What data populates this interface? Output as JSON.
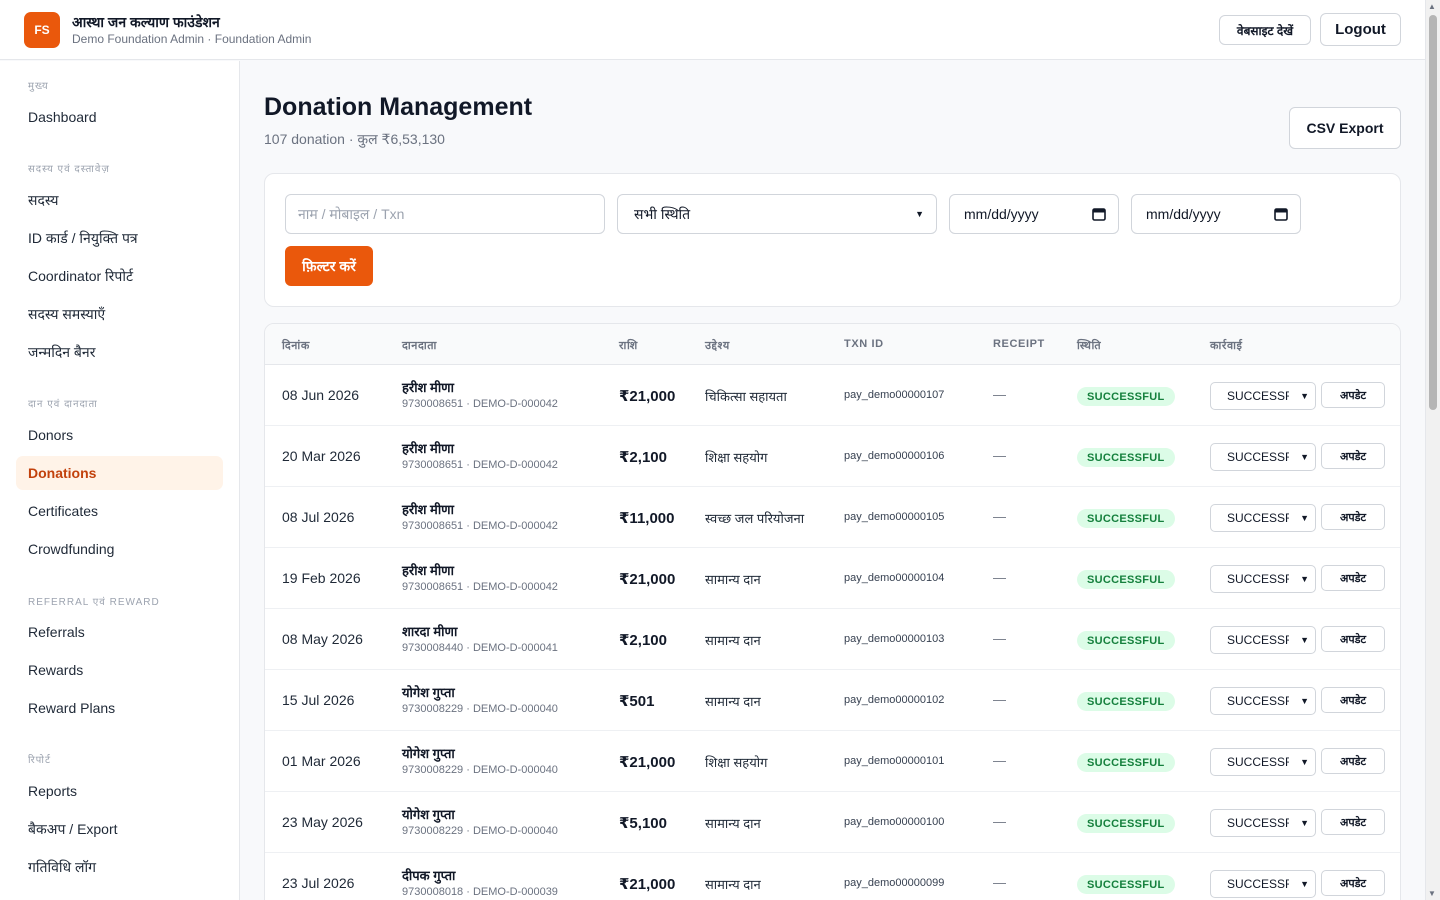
{
  "header": {
    "logo_text": "FS",
    "org_name": "आस्था जन कल्याण फाउंडेशन",
    "org_sub": "Demo Foundation Admin · Foundation Admin",
    "site_button": "वेबसाइट देखें",
    "logout_button": "Logout"
  },
  "sidebar": {
    "sections": [
      {
        "title": "मुख्य",
        "items": [
          "Dashboard"
        ]
      },
      {
        "title": "सदस्य एवं दस्तावेज़",
        "items": [
          "सदस्य",
          "ID कार्ड / नियुक्ति पत्र",
          "Coordinator रिपोर्ट",
          "सदस्य समस्याएँ",
          "जन्मदिन बैनर"
        ]
      },
      {
        "title": "दान एवं दानदाता",
        "items": [
          "Donors",
          "Donations",
          "Certificates",
          "Crowdfunding"
        ]
      },
      {
        "title": "REFERRAL एवं REWARD",
        "items": [
          "Referrals",
          "Rewards",
          "Reward Plans"
        ]
      },
      {
        "title": "रिपोर्ट",
        "items": [
          "Reports",
          "बैकअप / Export",
          "गतिविधि लॉग"
        ]
      }
    ],
    "active_item": "Donations"
  },
  "main": {
    "title": "Donation Management",
    "subtitle": "107 donation · कुल ₹6,53,130",
    "csv_button": "CSV Export",
    "filters": {
      "search_placeholder": "नाम / मोबाइल / Txn",
      "status_value": "सभी स्थिति",
      "date_from": "mm/dd/yyyy",
      "date_to": "mm/dd/yyyy",
      "filter_button": "फ़िल्टर करें"
    },
    "table": {
      "columns": [
        "दिनांक",
        "दानदाता",
        "राशि",
        "उद्देश्य",
        "TXN ID",
        "RECEIPT",
        "स्थिति",
        "कार्रवाई"
      ],
      "update_label": "अपडेट",
      "rows": [
        {
          "date": "08 Jun 2026",
          "donor": "हरीश मीणा",
          "donor_sub": "9730008651 · DEMO-D-000042",
          "amount": "₹21,000",
          "purpose": "चिकित्सा सहायता",
          "txn": "pay_demo00000107",
          "receipt": "—",
          "status": "SUCCESSFUL",
          "action_value": "SUCCESSFUL"
        },
        {
          "date": "20 Mar 2026",
          "donor": "हरीश मीणा",
          "donor_sub": "9730008651 · DEMO-D-000042",
          "amount": "₹2,100",
          "purpose": "शिक्षा सहयोग",
          "txn": "pay_demo00000106",
          "receipt": "—",
          "status": "SUCCESSFUL",
          "action_value": "SUCCESSFUL"
        },
        {
          "date": "08 Jul 2026",
          "donor": "हरीश मीणा",
          "donor_sub": "9730008651 · DEMO-D-000042",
          "amount": "₹11,000",
          "purpose": "स्वच्छ जल परियोजना",
          "txn": "pay_demo00000105",
          "receipt": "—",
          "status": "SUCCESSFUL",
          "action_value": "SUCCESSFUL"
        },
        {
          "date": "19 Feb 2026",
          "donor": "हरीश मीणा",
          "donor_sub": "9730008651 · DEMO-D-000042",
          "amount": "₹21,000",
          "purpose": "सामान्य दान",
          "txn": "pay_demo00000104",
          "receipt": "—",
          "status": "SUCCESSFUL",
          "action_value": "SUCCESSFUL"
        },
        {
          "date": "08 May 2026",
          "donor": "शारदा मीणा",
          "donor_sub": "9730008440 · DEMO-D-000041",
          "amount": "₹2,100",
          "purpose": "सामान्य दान",
          "txn": "pay_demo00000103",
          "receipt": "—",
          "status": "SUCCESSFUL",
          "action_value": "SUCCESSFUL"
        },
        {
          "date": "15 Jul 2026",
          "donor": "योगेश गुप्ता",
          "donor_sub": "9730008229 · DEMO-D-000040",
          "amount": "₹501",
          "purpose": "सामान्य दान",
          "txn": "pay_demo00000102",
          "receipt": "—",
          "status": "SUCCESSFUL",
          "action_value": "SUCCESSFUL"
        },
        {
          "date": "01 Mar 2026",
          "donor": "योगेश गुप्ता",
          "donor_sub": "9730008229 · DEMO-D-000040",
          "amount": "₹21,000",
          "purpose": "शिक्षा सहयोग",
          "txn": "pay_demo00000101",
          "receipt": "—",
          "status": "SUCCESSFUL",
          "action_value": "SUCCESSFUL"
        },
        {
          "date": "23 May 2026",
          "donor": "योगेश गुप्ता",
          "donor_sub": "9730008229 · DEMO-D-000040",
          "amount": "₹5,100",
          "purpose": "सामान्य दान",
          "txn": "pay_demo00000100",
          "receipt": "—",
          "status": "SUCCESSFUL",
          "action_value": "SUCCESSFUL"
        },
        {
          "date": "23 Jul 2026",
          "donor": "दीपक गुप्ता",
          "donor_sub": "9730008018 · DEMO-D-000039",
          "amount": "₹21,000",
          "purpose": "सामान्य दान",
          "txn": "pay_demo00000099",
          "receipt": "—",
          "status": "SUCCESSFUL",
          "action_value": "SUCCESSFUL"
        }
      ]
    }
  },
  "colors": {
    "accent": "#ea580c",
    "status_bg": "#dcfce7",
    "status_text": "#15803d"
  },
  "icons": {
    "calendar": "calendar-icon",
    "dropdown": "chevron-down-icon"
  }
}
